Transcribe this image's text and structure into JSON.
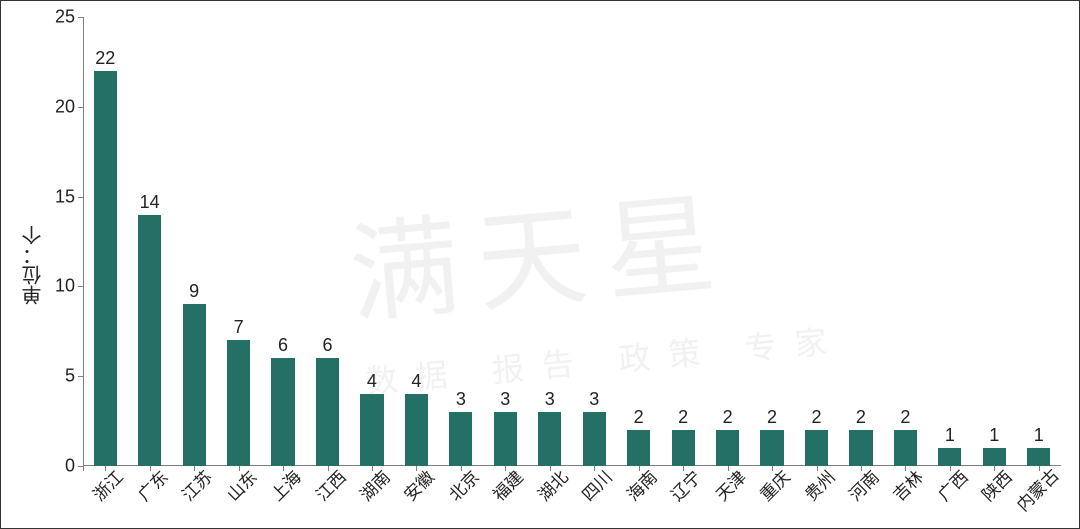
{
  "chart": {
    "type": "bar",
    "y_axis_label": "单位：个",
    "ylim": [
      0,
      25
    ],
    "yticks": [
      0,
      5,
      10,
      15,
      20,
      25
    ],
    "categories": [
      "浙江",
      "广东",
      "江苏",
      "山东",
      "上海",
      "江西",
      "湖南",
      "安徽",
      "北京",
      "福建",
      "湖北",
      "四川",
      "海南",
      "辽宁",
      "天津",
      "重庆",
      "贵州",
      "河南",
      "吉林",
      "广西",
      "陕西",
      "内蒙古"
    ],
    "values": [
      22,
      14,
      9,
      7,
      6,
      6,
      4,
      4,
      3,
      3,
      3,
      3,
      2,
      2,
      2,
      2,
      2,
      2,
      2,
      1,
      1,
      1
    ],
    "bar_color": "#247065",
    "bar_width_ratio": 0.52,
    "axis_color": "#808080",
    "text_color": "#222222",
    "background_color": "#ffffff",
    "value_label_fontsize": 18,
    "tick_label_fontsize": 18,
    "category_label_fontsize": 17,
    "category_label_rotation_deg": -45,
    "watermark_text": "满天星",
    "watermark_sub": "数据  报告  政策  专家",
    "watermark_color": "rgba(120,120,120,0.10)"
  }
}
